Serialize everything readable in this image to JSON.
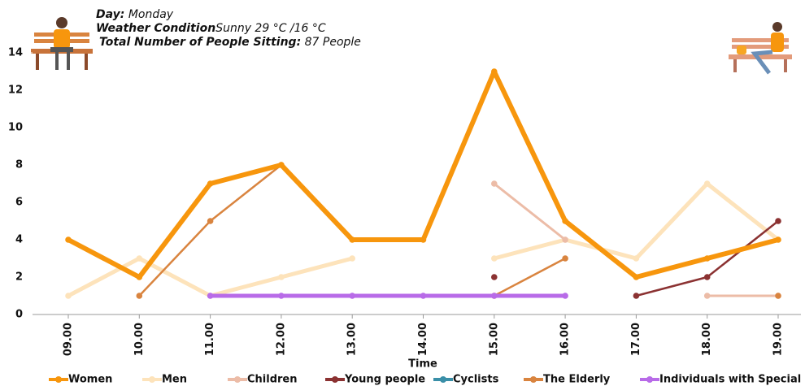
{
  "chart_data": {
    "type": "line",
    "day_label": "Day:",
    "day": "Monday",
    "weather_label": "Weather Condition",
    "weather": "Sunny 29 °C /16 °C",
    "total_label": "Total Number of People Sitting:",
    "total": 87,
    "total_unit": "People",
    "x_label": "Time",
    "categories": [
      "09.00",
      "10.00",
      "11.00",
      "12.00",
      "13.00",
      "14.00",
      "15.00",
      "16.00",
      "17.00",
      "18.00",
      "19.00"
    ],
    "series": [
      {
        "name": "Women",
        "color": "#f7960d",
        "values": [
          4,
          2,
          7,
          8,
          4,
          4,
          13,
          5,
          2,
          3,
          4
        ]
      },
      {
        "name": "Men",
        "color": "#fde3bb",
        "values": [
          1,
          3,
          1,
          2,
          3,
          null,
          3,
          4,
          3,
          7,
          4
        ]
      },
      {
        "name": "Children",
        "color": "#ecbca7",
        "values": [
          null,
          null,
          null,
          null,
          null,
          null,
          7,
          4,
          null,
          1,
          1
        ]
      },
      {
        "name": "Young people",
        "color": "#8b3232",
        "values": [
          null,
          null,
          null,
          null,
          null,
          null,
          2,
          null,
          1,
          2,
          5
        ]
      },
      {
        "name": "Cyclists",
        "color": "#3a8fa8",
        "values": [
          null,
          null,
          null,
          null,
          null,
          null,
          null,
          null,
          null,
          null,
          null
        ]
      },
      {
        "name": "The Elderly",
        "color": "#d9843f",
        "values": [
          null,
          1,
          5,
          8,
          null,
          null,
          1,
          3,
          null,
          null,
          1
        ]
      },
      {
        "name": "Individuals with Special Needs",
        "color": "#b86be8",
        "values": [
          null,
          null,
          1,
          1,
          1,
          1,
          1,
          1,
          null,
          null,
          null
        ]
      }
    ],
    "ylim": [
      0,
      14
    ],
    "yticks": [
      0,
      2,
      4,
      6,
      8,
      10,
      12,
      14
    ]
  }
}
